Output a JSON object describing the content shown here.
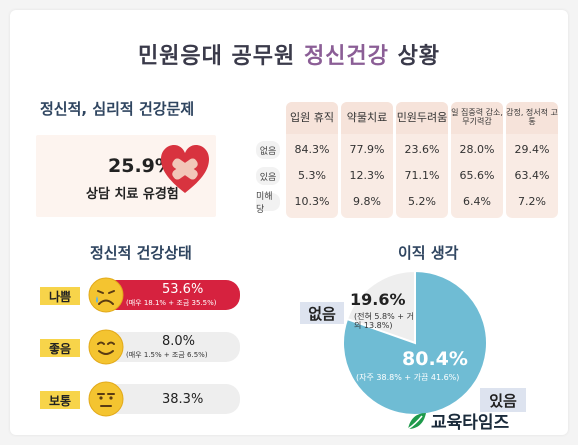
{
  "title": {
    "prefix": "민원응대 공무원 ",
    "accent": "정신건강",
    "suffix": " 상황"
  },
  "colors": {
    "accent_purple": "#8b5e96",
    "bad_red": "#d6223f",
    "pie_blue": "#6fbcd4",
    "pie_gray": "#eeeeee",
    "table_header": "#f6e3da",
    "label_yellow": "#f7d44a"
  },
  "section1": {
    "title": "정신적, 심리적 건강문제",
    "percent": "25.9%",
    "label": "상담 치료 유경험",
    "icon": "heart-bandage-icon"
  },
  "section2": {
    "title": "정신적 건강상태",
    "items": [
      {
        "tag": "나쁨",
        "face": "sad-face-icon",
        "percent": "53.6%",
        "value": 53.6,
        "detail": "(매우 18.1% + 조금 35.5%)",
        "tag_color": "#f7d44a"
      },
      {
        "tag": "좋음",
        "face": "smile-face-icon",
        "percent": "8.0%",
        "value": 8.0,
        "detail": "(매우 1.5% + 조금 6.5%)",
        "tag_color": "#f7d44a"
      },
      {
        "tag": "보통",
        "face": "neutral-face-icon",
        "percent": "38.3%",
        "value": 38.3,
        "detail": "",
        "tag_color": "#f7d44a"
      }
    ]
  },
  "table": {
    "headers": [
      "입원 휴직",
      "약물치료",
      "민원두려움",
      "일 집중력 감소, 무기력감",
      "감정, 정서적 고통"
    ],
    "rows": [
      {
        "label": "없음",
        "values": [
          "84.3%",
          "77.9%",
          "23.6%",
          "28.0%",
          "29.4%"
        ]
      },
      {
        "label": "있음",
        "values": [
          "5.3%",
          "12.3%",
          "71.1%",
          "65.6%",
          "63.4%"
        ]
      },
      {
        "label": "미해당",
        "values": [
          "10.3%",
          "9.8%",
          "5.2%",
          "6.4%",
          "7.2%"
        ]
      }
    ]
  },
  "section3": {
    "title": "이직 생각"
  },
  "chart_data": {
    "type": "pie",
    "title": "이직 생각",
    "slices": [
      {
        "label": "없음",
        "value": 19.6,
        "percent_text": "19.6%",
        "detail": "(전혀  5.8% + 거의 13.8%)",
        "color": "#eeeeee"
      },
      {
        "label": "있음",
        "value": 80.4,
        "percent_text": "80.4%",
        "detail": "(자주 38.8% + 가끔 41.6%)",
        "color": "#6fbcd4"
      }
    ]
  },
  "logo": {
    "text": "교육타임즈",
    "icon": "leaf-logo-icon"
  }
}
